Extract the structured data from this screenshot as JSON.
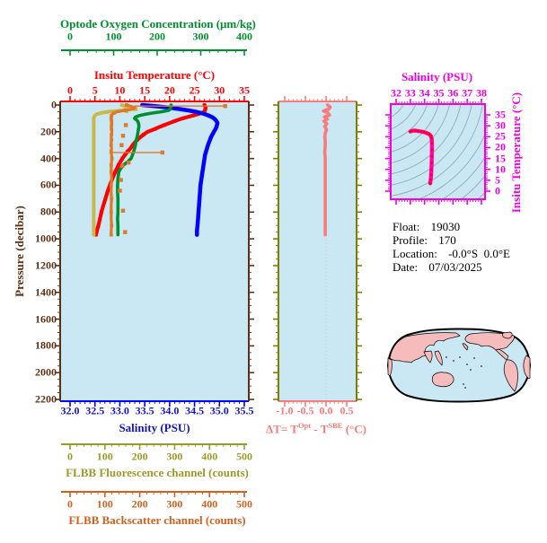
{
  "figure": {
    "info": {
      "float_label": "Float:",
      "float_value": "19030",
      "profile_label": "Profile:",
      "profile_value": "170",
      "location_label": "Location:",
      "location_value": "-0.0°S  0.0°E",
      "date_label": "Date:",
      "date_value": "07/03/2025"
    },
    "axes": {
      "oxygen": {
        "title": "Optode Oxygen Concentration (μm/kg)",
        "ticks": [
          "0",
          "100",
          "200",
          "300",
          "400"
        ],
        "range": [
          0,
          400
        ]
      },
      "temperature": {
        "title": "Insitu Temperature (°C)",
        "ticks": [
          "0",
          "5",
          "10",
          "15",
          "20",
          "25",
          "30",
          "35"
        ],
        "range": [
          0,
          35
        ]
      },
      "pressure": {
        "title": "Pressure (decibar)",
        "ticks": [
          "0",
          "200",
          "400",
          "600",
          "800",
          "1000",
          "1200",
          "1400",
          "1600",
          "1800",
          "2000",
          "2200"
        ],
        "range": [
          0,
          2200
        ]
      },
      "salinity": {
        "title": "Salinity (PSU)",
        "ticks": [
          "32.0",
          "32.5",
          "33.0",
          "33.5",
          "34.0",
          "34.5",
          "35.0",
          "35.5"
        ],
        "range": [
          32,
          35.5
        ]
      },
      "fluorescence": {
        "title": "FLBB Fluorescence channel (counts)",
        "ticks": [
          "0",
          "100",
          "200",
          "300",
          "400",
          "500"
        ],
        "range": [
          0,
          500
        ]
      },
      "backscatter": {
        "title": "FLBB Backscatter channel (counts)",
        "ticks": [
          "0",
          "100",
          "200",
          "300",
          "400",
          "500"
        ],
        "range": [
          0,
          500
        ]
      },
      "delta_t": {
        "title_parts": {
          "prefix": "ΔT= T",
          "sup1": "Opt",
          "mid": " - T",
          "sup2": "SBE",
          "suffix": " (°C)"
        },
        "ticks": [
          "-1.0",
          "-0.5",
          "0.0",
          "0.5"
        ],
        "range": [
          -1.0,
          0.5
        ]
      },
      "ts_salinity": {
        "title": "Salinity (PSU)",
        "ticks": [
          "32",
          "33",
          "34",
          "35",
          "36",
          "37",
          "38"
        ],
        "range": [
          32,
          38
        ]
      },
      "ts_temperature": {
        "title": "Insitu Temperature (°C)",
        "ticks": [
          "35",
          "30",
          "25",
          "20",
          "15",
          "10",
          "5",
          "0"
        ],
        "range": [
          0,
          35
        ]
      }
    },
    "map": {
      "description": "world-map-pacific-centered",
      "land_color": "#f6bcbc",
      "ocean_color": "#c9e8f3",
      "outline_color": "#000000"
    },
    "colors": {
      "plot_bg": "#c9e8f3",
      "temperature": "#ff0000",
      "oxygen": "#008f2f",
      "salinity": "#1414cc",
      "salinity_curve": "#0000ff",
      "pressure": "#5a3117",
      "fluorescence_text": "#9b9b2a",
      "fluorescence_curve": "#c9b84a",
      "backscatter": "#d2601e",
      "backscatter_curve": "#e07828",
      "delta_t": "#f97b7b",
      "dt_frame": "#7d7d00",
      "magenta": "#f000e0",
      "ts_curve": "#ff00bb",
      "ts_dot": "#ff0000",
      "contour": "#96a9b6",
      "text": "#000000"
    }
  },
  "chart_data": [
    {
      "type": "line",
      "title": "Vertical profiles vs pressure",
      "ylabel": "Pressure (decibar)",
      "ylim": [
        0,
        2200
      ],
      "profile_max_pressure": 970,
      "pressure": [
        0,
        10,
        20,
        30,
        40,
        50,
        60,
        70,
        80,
        90,
        100,
        110,
        120,
        135,
        150,
        165,
        180,
        200,
        220,
        240,
        260,
        280,
        300,
        325,
        350,
        375,
        400,
        425,
        450,
        475,
        500,
        550,
        600,
        650,
        700,
        750,
        800,
        850,
        900,
        940,
        970
      ],
      "series": [
        {
          "id": "temperature",
          "name": "Insitu Temperature",
          "units": "°C",
          "color": "#ff0000",
          "xlim": [
            0,
            35
          ],
          "values": [
            27.0,
            27.1,
            27.2,
            27.2,
            27.1,
            26.9,
            26.5,
            25.6,
            24.6,
            23.6,
            22.6,
            21.8,
            21.0,
            20.0,
            18.9,
            17.9,
            17.0,
            15.6,
            14.8,
            14.1,
            13.5,
            13.0,
            12.6,
            12.1,
            11.5,
            11.0,
            10.5,
            10.1,
            9.7,
            9.4,
            9.1,
            8.5,
            8.0,
            7.5,
            7.1,
            6.7,
            6.3,
            6.0,
            5.7,
            5.4,
            5.2
          ]
        },
        {
          "id": "salinity",
          "name": "Salinity",
          "units": "PSU",
          "color": "#0000ff",
          "xlim": [
            32,
            35.5
          ],
          "values": [
            33.45,
            33.75,
            34.0,
            34.2,
            34.38,
            34.52,
            34.63,
            34.72,
            34.79,
            34.85,
            34.89,
            34.92,
            34.94,
            34.96,
            34.95,
            34.94,
            34.92,
            34.89,
            34.86,
            34.83,
            34.81,
            34.79,
            34.77,
            34.75,
            34.73,
            34.71,
            34.7,
            34.69,
            34.68,
            34.67,
            34.66,
            34.64,
            34.62,
            34.61,
            34.6,
            34.59,
            34.58,
            34.57,
            34.56,
            34.55,
            34.55
          ]
        },
        {
          "id": "oxygen",
          "name": "Optode Oxygen Concentration",
          "units": "μm/kg",
          "color": "#008f2f",
          "xlim": [
            0,
            400
          ],
          "values": [
            232,
            231,
            231,
            230,
            226,
            210,
            190,
            172,
            158,
            150,
            148,
            152,
            155,
            157,
            158,
            158,
            157,
            156,
            155,
            154,
            152,
            151,
            150,
            148,
            146,
            143,
            140,
            132,
            122,
            116,
            112,
            110,
            109,
            109,
            110,
            110,
            110,
            109,
            110,
            110,
            110
          ]
        },
        {
          "id": "fluorescence",
          "name": "FLBB Fluorescence channel",
          "units": "counts",
          "color": "#c9b84a",
          "xlim": [
            0,
            500
          ],
          "values": [
            148,
            160,
            172,
            174,
            150,
            110,
            88,
            76,
            71,
            69,
            68,
            68,
            68,
            68,
            68,
            68,
            68,
            68,
            68,
            68,
            68,
            68,
            68,
            68,
            68,
            68,
            68,
            68,
            68,
            68,
            68,
            68,
            68,
            68,
            68,
            68,
            68,
            68,
            68,
            68,
            68
          ],
          "outliers": [
            {
              "pressure": 30,
              "value": 188
            },
            {
              "pressure": 45,
              "value": 162
            }
          ]
        },
        {
          "id": "backscatter",
          "name": "FLBB Backscatter channel",
          "units": "counts",
          "color": "#e07828",
          "xlim": [
            0,
            500
          ],
          "values": [
            162,
            175,
            184,
            182,
            158,
            136,
            126,
            121,
            119,
            118,
            118,
            118,
            119,
            120,
            119,
            118,
            119,
            120,
            119,
            118,
            119,
            118,
            118,
            119,
            118,
            119,
            120,
            119,
            118,
            118,
            118,
            119,
            118,
            118,
            119,
            118,
            118,
            118,
            119,
            118,
            118
          ],
          "spikes": [
            {
              "pressure": 8,
              "from": 184,
              "value": 445
            },
            {
              "pressure": 355,
              "from": 118,
              "value": 265
            }
          ],
          "outliers": [
            {
              "pressure": 150,
              "value": 160
            },
            {
              "pressure": 230,
              "value": 152
            },
            {
              "pressure": 300,
              "value": 148
            },
            {
              "pressure": 430,
              "value": 168
            },
            {
              "pressure": 455,
              "value": 150
            },
            {
              "pressure": 560,
              "value": 146
            },
            {
              "pressure": 640,
              "value": 143
            },
            {
              "pressure": 790,
              "value": 152
            },
            {
              "pressure": 950,
              "value": 158
            }
          ]
        }
      ]
    },
    {
      "type": "line",
      "title": "ΔT = T Opt - T SBE (°C) vs pressure",
      "xlim": [
        -1.0,
        0.5
      ],
      "ylim": [
        0,
        2200
      ],
      "color": "#f97b7b",
      "pressure": [
        0,
        15,
        30,
        45,
        60,
        75,
        90,
        105,
        120,
        140,
        160,
        185,
        210,
        240,
        270,
        300,
        350,
        400,
        450,
        500,
        560,
        620,
        680,
        740,
        800,
        860,
        920,
        970
      ],
      "values": [
        0.04,
        0.1,
        0.07,
        -0.06,
        0.05,
        0.08,
        -0.04,
        0.03,
        -0.05,
        0.02,
        -0.03,
        0.01,
        -0.02,
        -0.03,
        -0.02,
        -0.02,
        -0.03,
        -0.02,
        -0.02,
        -0.02,
        -0.02,
        -0.02,
        -0.02,
        -0.02,
        -0.02,
        -0.02,
        -0.02,
        -0.02
      ]
    },
    {
      "type": "scatter",
      "title": "T-S diagram",
      "xlabel": "Salinity (PSU)",
      "ylabel": "Insitu Temperature (°C)",
      "xlim": [
        32,
        38
      ],
      "ylim": [
        0,
        35
      ],
      "color": "#ff00bb",
      "salinity": [
        33.0,
        33.15,
        33.35,
        33.55,
        33.75,
        33.95,
        34.15,
        34.32,
        34.44,
        34.5,
        34.52,
        34.52,
        34.51,
        34.5,
        34.48,
        34.46,
        34.43,
        34.4
      ],
      "temperature": [
        27.4,
        27.7,
        27.8,
        27.6,
        27.4,
        27.1,
        26.7,
        26.2,
        25.4,
        24.2,
        22.0,
        19.0,
        16.0,
        13.0,
        10.0,
        7.5,
        5.2,
        3.6
      ]
    }
  ]
}
